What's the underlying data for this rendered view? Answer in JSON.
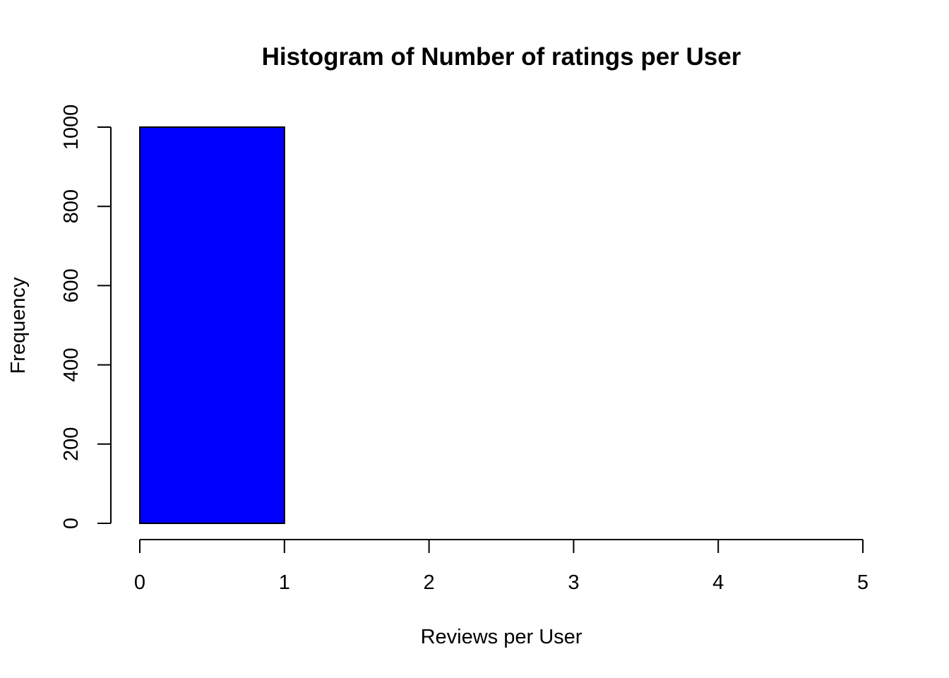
{
  "chart_data": {
    "type": "bar",
    "title": "Histogram of Number of ratings per User",
    "xlabel": "Reviews per User",
    "ylabel": "Frequency",
    "bins": [
      {
        "from": 0,
        "to": 1,
        "count": 1000
      }
    ],
    "xlim": [
      0,
      5
    ],
    "ylim": [
      0,
      1000
    ],
    "x_ticks": [
      "0",
      "1",
      "2",
      "3",
      "4",
      "5"
    ],
    "y_ticks": [
      "0",
      "200",
      "400",
      "600",
      "800",
      "1000"
    ],
    "bar_color": "#0000FF",
    "bar_border_color": "#000000",
    "grid": false,
    "legend": "none"
  }
}
